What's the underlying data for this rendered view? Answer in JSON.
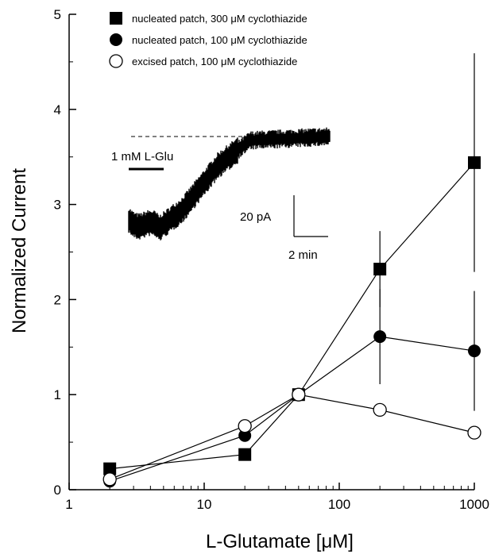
{
  "chart_data": {
    "type": "scatter",
    "title": "",
    "xlabel": "L-Glutamate [μM]",
    "ylabel": "Normalized Current",
    "xscale": "log",
    "xlim": [
      1,
      1000
    ],
    "ylim": [
      0,
      5
    ],
    "x_ticks": [
      "1",
      "10",
      "100",
      "1000"
    ],
    "y_ticks": [
      "0",
      "1",
      "2",
      "3",
      "4",
      "5"
    ],
    "grid": false,
    "legend_position": "top-left",
    "series": [
      {
        "name": "nucleated patch, 300 μM cyclothiazide",
        "marker": "filled-square",
        "color": "#000000",
        "points": [
          {
            "x": 2,
            "y": 0.22,
            "err": 0.05
          },
          {
            "x": 20,
            "y": 0.37,
            "err": 0
          },
          {
            "x": 50,
            "y": 1.0,
            "err": 0
          },
          {
            "x": 200,
            "y": 2.32,
            "err": 0.4
          },
          {
            "x": 1000,
            "y": 3.44,
            "err": 1.15
          }
        ]
      },
      {
        "name": "nucleated patch, 100 μM cyclothiazide",
        "marker": "filled-circle",
        "color": "#000000",
        "points": [
          {
            "x": 2,
            "y": 0.09,
            "err": 0
          },
          {
            "x": 20,
            "y": 0.57,
            "err": 0
          },
          {
            "x": 50,
            "y": 1.0,
            "err": 0
          },
          {
            "x": 200,
            "y": 1.61,
            "err": 0.5
          },
          {
            "x": 1000,
            "y": 1.46,
            "err": 0.63
          }
        ]
      },
      {
        "name": "excised patch, 100 μM cyclothiazide",
        "marker": "open-circle",
        "color": "#000000",
        "points": [
          {
            "x": 2,
            "y": 0.11,
            "err": 0
          },
          {
            "x": 20,
            "y": 0.67,
            "err": 0
          },
          {
            "x": 50,
            "y": 1.0,
            "err": 0
          },
          {
            "x": 200,
            "y": 0.84,
            "err": 0
          },
          {
            "x": 1000,
            "y": 0.6,
            "err": 0
          }
        ]
      }
    ],
    "inset": {
      "stimulus_label": "1 mM L-Glu",
      "scale_current_label": "20 pA",
      "scale_time_label": "2 min"
    }
  }
}
